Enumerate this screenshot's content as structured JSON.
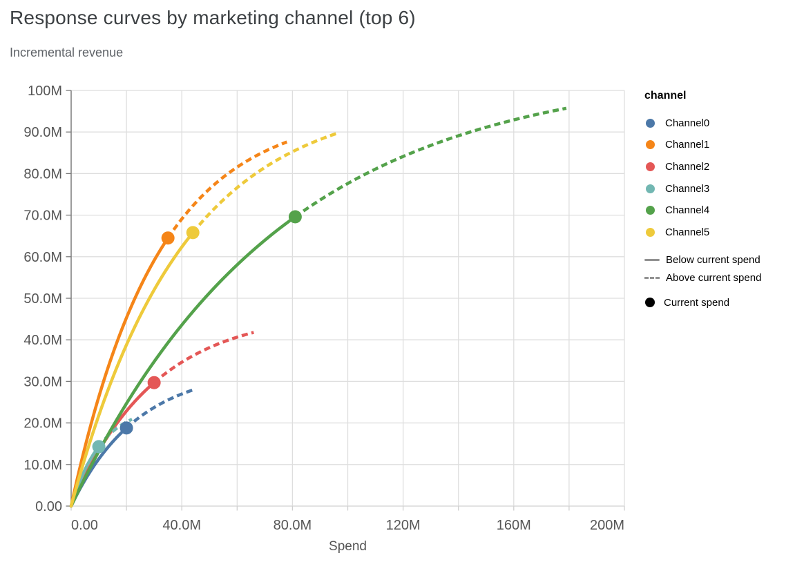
{
  "title": "Response curves by marketing channel (top 6)",
  "subtitle": "Incremental revenue",
  "legend": {
    "title": "channel",
    "point_label": "Current spend"
  },
  "chart_data": {
    "type": "line",
    "title": "Response curves by marketing channel (top 6)",
    "subtitle": "Incremental revenue",
    "xlabel": "Spend",
    "ylabel": "Incremental revenue",
    "x_unit": "M",
    "y_unit": "M",
    "xlim_m": [
      0,
      200
    ],
    "ylim_m": [
      0,
      100
    ],
    "x_grid_step_m": 20,
    "y_grid_step_m": 10,
    "grid": true,
    "legend_position": "right",
    "x_ticks": [
      {
        "v": 0,
        "label": "0.00"
      },
      {
        "v": 40,
        "label": "40.0M"
      },
      {
        "v": 80,
        "label": "80.0M"
      },
      {
        "v": 120,
        "label": "120M"
      },
      {
        "v": 160,
        "label": "160M"
      },
      {
        "v": 200,
        "label": "200M"
      }
    ],
    "y_ticks": [
      {
        "v": 0,
        "label": "0.00"
      },
      {
        "v": 10,
        "label": "10.0M"
      },
      {
        "v": 20,
        "label": "20.0M"
      },
      {
        "v": 30,
        "label": "30.0M"
      },
      {
        "v": 40,
        "label": "40.0M"
      },
      {
        "v": 50,
        "label": "50.0M"
      },
      {
        "v": 60,
        "label": "60.0M"
      },
      {
        "v": 70,
        "label": "70.0M"
      },
      {
        "v": 80,
        "label": "80.0M"
      },
      {
        "v": 90,
        "label": "90.0M"
      },
      {
        "v": 100,
        "label": "100M"
      }
    ],
    "line_style_legend": [
      {
        "label": "Below current spend",
        "style": "solid"
      },
      {
        "label": "Above current spend",
        "style": "dashed"
      }
    ],
    "point_legend_label": "Current spend",
    "series": [
      {
        "name": "Channel0",
        "color": "#4c78a8",
        "current_spend_m": 20,
        "current_revenue_m": 18.8,
        "max_spend_m": 44,
        "max_revenue_m": 27.9,
        "sat_A": 33.25,
        "sat_B": 24
      },
      {
        "name": "Channel1",
        "color": "#f58518",
        "current_spend_m": 35,
        "current_revenue_m": 64.5,
        "max_spend_m": 78,
        "max_revenue_m": 87.7,
        "sat_A": 95.3,
        "sat_B": 31
      },
      {
        "name": "Channel2",
        "color": "#e45756",
        "current_spend_m": 30,
        "current_revenue_m": 29.7,
        "max_spend_m": 66,
        "max_revenue_m": 41.7,
        "sat_A": 47.0,
        "sat_B": 30
      },
      {
        "name": "Channel3",
        "color": "#72b7b2",
        "current_spend_m": 10,
        "current_revenue_m": 14.3,
        "max_spend_m": 22,
        "max_revenue_m": 21.0,
        "sat_A": 24.3,
        "sat_B": 11.2
      },
      {
        "name": "Channel4",
        "color": "#54a24b",
        "current_spend_m": 81,
        "current_revenue_m": 69.6,
        "max_spend_m": 179,
        "max_revenue_m": 95.3,
        "sat_A": 105.4,
        "sat_B": 75
      },
      {
        "name": "Channel5",
        "color": "#eeca3b",
        "current_spend_m": 44,
        "current_revenue_m": 65.8,
        "max_spend_m": 97,
        "max_revenue_m": 89.7,
        "sat_A": 98.6,
        "sat_B": 40
      }
    ],
    "style_colors": {
      "grid": "#dedede",
      "x_domain": "#d9d9d9",
      "x_tick": "#cfcfcf",
      "y_domain": "#7a7a7a",
      "y_tick": "#7a7a7a",
      "tick_label": "#565656",
      "axis_title": "#555555",
      "legend_line": "#919191",
      "current_spend_point_legend": "#000000"
    }
  }
}
